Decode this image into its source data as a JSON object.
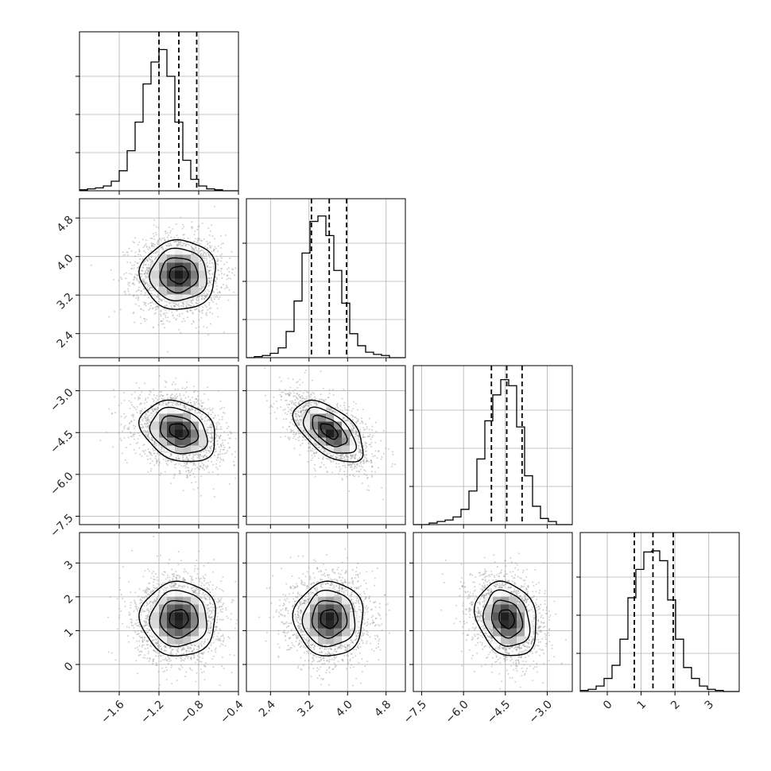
{
  "chart_data": {
    "type": "corner",
    "n_params": 4,
    "grid": true,
    "colors": {
      "hist_line": "#000000",
      "contour": "#000000",
      "quantile_line": "#000000",
      "points": "#9a9a9a",
      "density_dark": "#000000",
      "grid": "#b0b0b0"
    },
    "params": [
      {
        "mean": -1.0,
        "sd": 0.19,
        "range": [
          -2.0,
          -0.4
        ],
        "ticks": [
          -1.6,
          -1.2,
          -0.8,
          -0.4
        ],
        "tick_labels": [
          "−1.6",
          "−1.2",
          "−0.8",
          "−0.4"
        ],
        "quantiles": [
          -1.2,
          -1.0,
          -0.82
        ],
        "hist": {
          "start": -2.0,
          "width": 0.08,
          "counts": [
            1,
            2,
            3,
            5,
            10,
            21,
            42,
            72,
            112,
            135,
            148,
            120,
            72,
            32,
            12,
            5,
            2,
            1,
            0,
            0
          ],
          "ymax": 160
        }
      },
      {
        "mean": 3.62,
        "sd": 0.36,
        "range": [
          1.9,
          5.2
        ],
        "ticks": [
          2.4,
          3.2,
          4.0,
          4.8
        ],
        "tick_labels": [
          "2.4",
          "3.2",
          "4.0",
          "4.8"
        ],
        "quantiles": [
          3.25,
          3.62,
          3.98
        ],
        "hist": {
          "start": 1.9,
          "width": 0.165,
          "counts": [
            0,
            1,
            2,
            4,
            9,
            24,
            52,
            96,
            125,
            130,
            112,
            80,
            50,
            22,
            11,
            5,
            3,
            2,
            0,
            0
          ],
          "ymax": 140
        }
      },
      {
        "mean": -4.45,
        "sd": 0.55,
        "range": [
          -7.8,
          -2.1
        ],
        "ticks": [
          -7.5,
          -6.0,
          -4.5,
          -3.0
        ],
        "tick_labels": [
          "−7.5",
          "−6.0",
          "−4.5",
          "−3.0"
        ],
        "quantiles": [
          -5.0,
          -4.45,
          -3.9
        ],
        "hist": {
          "start": -7.8,
          "width": 0.285,
          "counts": [
            0,
            0,
            1,
            2,
            3,
            5,
            10,
            22,
            43,
            68,
            85,
            95,
            91,
            64,
            32,
            12,
            4,
            2,
            0,
            0
          ],
          "ymax": 100
        }
      },
      {
        "mean": 1.35,
        "sd": 0.55,
        "range": [
          -0.8,
          3.9
        ],
        "ticks": [
          0,
          1,
          2,
          3
        ],
        "tick_labels": [
          "0",
          "1",
          "2",
          "3"
        ],
        "quantiles": [
          0.8,
          1.35,
          1.95
        ],
        "hist": {
          "start": -0.8,
          "width": 0.235,
          "counts": [
            1,
            2,
            5,
            12,
            24,
            48,
            86,
            112,
            128,
            129,
            120,
            84,
            48,
            22,
            12,
            5,
            2,
            1,
            0,
            0
          ],
          "ymax": 140
        }
      }
    ],
    "pair_correlations": {
      "1-0": 0.0,
      "2-0": -0.25,
      "2-1": -0.55,
      "3-0": 0.0,
      "3-1": 0.0,
      "3-2": -0.2
    },
    "contour_levels_sigma": [
      0.5,
      1.0,
      1.5,
      2.0
    ]
  }
}
